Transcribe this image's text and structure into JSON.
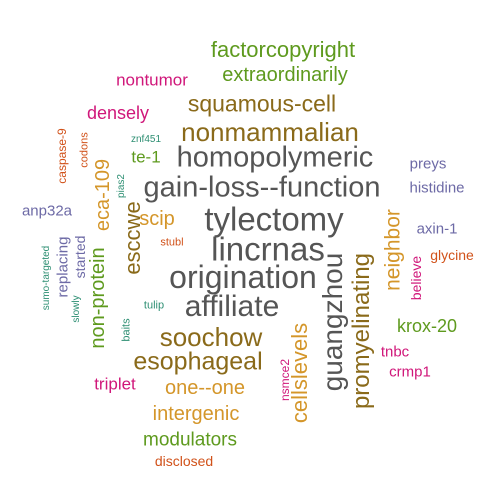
{
  "palette": {
    "gray": "#555555",
    "brown": "#8a6a1a",
    "green": "#5e9a1e",
    "magenta": "#d0177a",
    "purple": "#6d6aa6",
    "orange": "#d4962a",
    "red_orange": "#d1521a",
    "teal": "#2e8f73"
  },
  "words": [
    {
      "text": "factorcopyright",
      "color": "green"
    },
    {
      "text": "extraordinarily",
      "color": "green"
    },
    {
      "text": "nontumor",
      "color": "magenta"
    },
    {
      "text": "densely",
      "color": "magenta"
    },
    {
      "text": "squamous-cell",
      "color": "brown"
    },
    {
      "text": "nonmammalian",
      "color": "brown"
    },
    {
      "text": "homopolymeric",
      "color": "gray"
    },
    {
      "text": "gain-loss--function",
      "color": "gray"
    },
    {
      "text": "tylectomy",
      "color": "gray"
    },
    {
      "text": "lincrnas",
      "color": "gray"
    },
    {
      "text": "origination",
      "color": "gray"
    },
    {
      "text": "affiliate",
      "color": "gray"
    },
    {
      "text": "soochow",
      "color": "brown"
    },
    {
      "text": "esophageal",
      "color": "brown"
    },
    {
      "text": "one--one",
      "color": "orange"
    },
    {
      "text": "intergenic",
      "color": "orange"
    },
    {
      "text": "modulators",
      "color": "green"
    },
    {
      "text": "disclosed",
      "color": "red_orange"
    },
    {
      "text": "triplet",
      "color": "magenta"
    },
    {
      "text": "te-1",
      "color": "green"
    },
    {
      "text": "scip",
      "color": "orange"
    },
    {
      "text": "esccwe",
      "color": "brown"
    },
    {
      "text": "eca-109",
      "color": "orange"
    },
    {
      "text": "non-protein",
      "color": "green"
    },
    {
      "text": "guangzhou",
      "color": "gray"
    },
    {
      "text": "promyelinating",
      "color": "brown"
    },
    {
      "text": "cellslevels",
      "color": "orange"
    },
    {
      "text": "neighbor",
      "color": "orange"
    },
    {
      "text": "preys",
      "color": "purple"
    },
    {
      "text": "histidine",
      "color": "purple"
    },
    {
      "text": "axin-1",
      "color": "purple"
    },
    {
      "text": "glycine",
      "color": "red_orange"
    },
    {
      "text": "believe",
      "color": "magenta"
    },
    {
      "text": "krox-20",
      "color": "green"
    },
    {
      "text": "tnbc",
      "color": "magenta"
    },
    {
      "text": "crmp1",
      "color": "magenta"
    },
    {
      "text": "nsmce2",
      "color": "magenta"
    },
    {
      "text": "stubl",
      "color": "red_orange"
    },
    {
      "text": "tulip",
      "color": "teal"
    },
    {
      "text": "baits",
      "color": "teal"
    },
    {
      "text": "slowly",
      "color": "teal"
    },
    {
      "text": "sumo-targeted",
      "color": "teal"
    },
    {
      "text": "replacing",
      "color": "purple"
    },
    {
      "text": "started",
      "color": "purple"
    },
    {
      "text": "anp32a",
      "color": "purple"
    },
    {
      "text": "caspase-9",
      "color": "red_orange"
    },
    {
      "text": "codons",
      "color": "red_orange"
    },
    {
      "text": "znf451",
      "color": "teal"
    },
    {
      "text": "pias2",
      "color": "teal"
    }
  ]
}
